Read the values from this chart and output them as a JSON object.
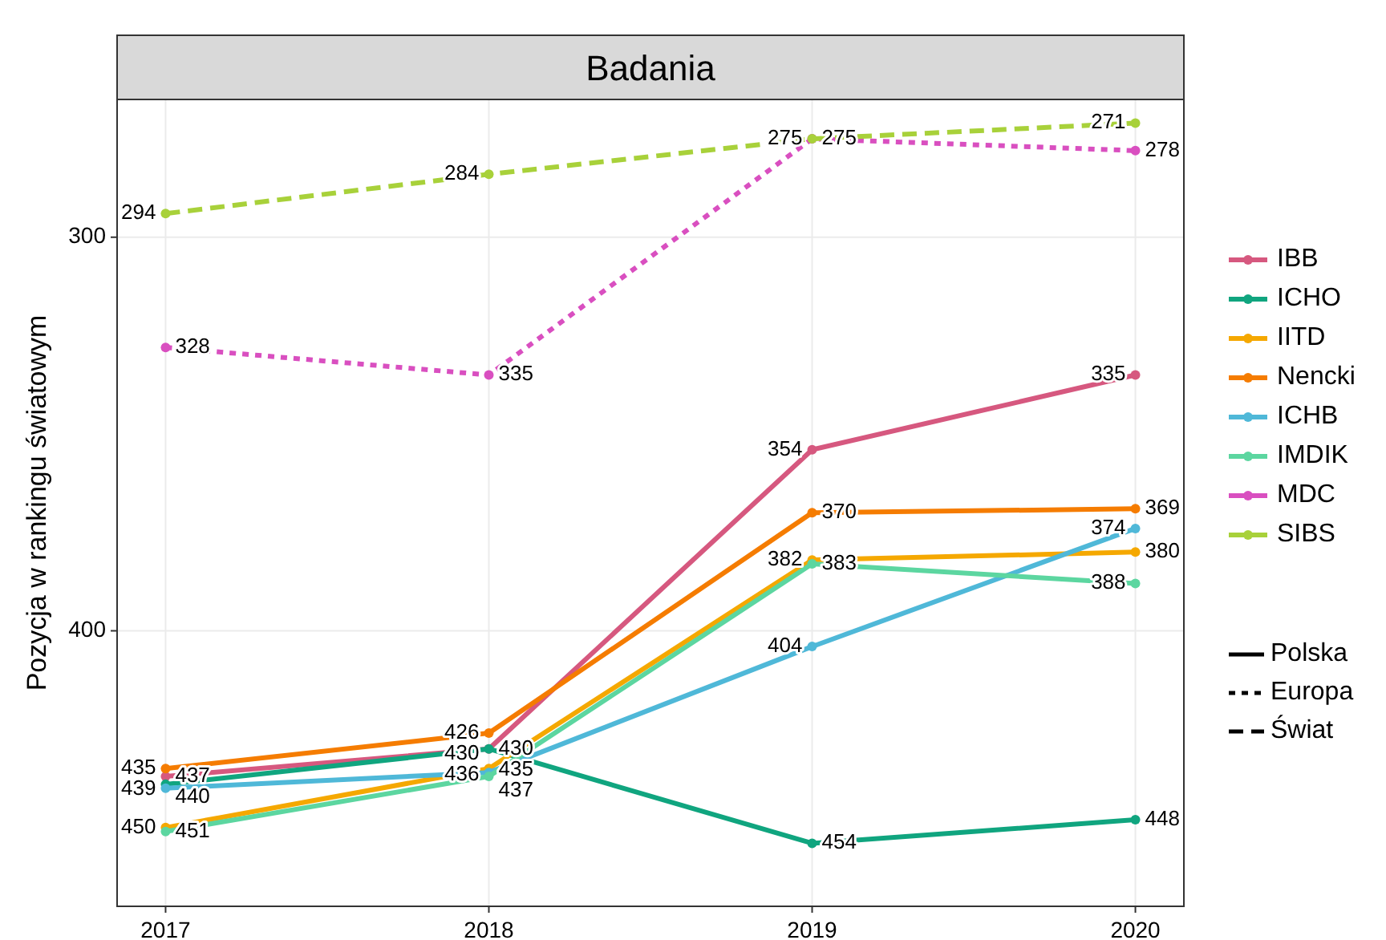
{
  "chart_data": {
    "type": "line",
    "title": "Badania",
    "ylabel": "Pozycja w rankingu światowym",
    "categories": [
      "2017",
      "2018",
      "2019",
      "2020"
    ],
    "ylim": [
      470,
      265
    ],
    "yticks": [
      300,
      400
    ],
    "grid": true,
    "legend": "right",
    "marker": "circle",
    "data_labels": true,
    "series": [
      {
        "name": "IBB",
        "color": "#d6587f",
        "line_style": "solid",
        "values": [
          437,
          430,
          354,
          335
        ]
      },
      {
        "name": "ICHO",
        "color": "#10a57f",
        "line_style": "solid",
        "values": [
          439,
          430,
          454,
          448
        ]
      },
      {
        "name": "IITD",
        "color": "#f5a800",
        "line_style": "solid",
        "values": [
          450,
          435,
          382,
          380
        ]
      },
      {
        "name": "Nencki",
        "color": "#f57c00",
        "line_style": "solid",
        "values": [
          435,
          426,
          370,
          369
        ]
      },
      {
        "name": "ICHB",
        "color": "#4fb8d8",
        "line_style": "solid",
        "values": [
          440,
          436,
          404,
          374
        ]
      },
      {
        "name": "IMDIK",
        "color": "#5cd6a0",
        "line_style": "solid",
        "values": [
          451,
          437,
          383,
          388
        ]
      },
      {
        "name": "MDC",
        "color": "#d94fc0",
        "line_style": "dotted",
        "values": [
          328,
          335,
          275,
          278
        ]
      },
      {
        "name": "SIBS",
        "color": "#a8d13a",
        "line_style": "dashed",
        "values": [
          294,
          284,
          275,
          271
        ]
      }
    ],
    "annotations": [
      "Polska",
      "Europa",
      "Świat"
    ]
  }
}
